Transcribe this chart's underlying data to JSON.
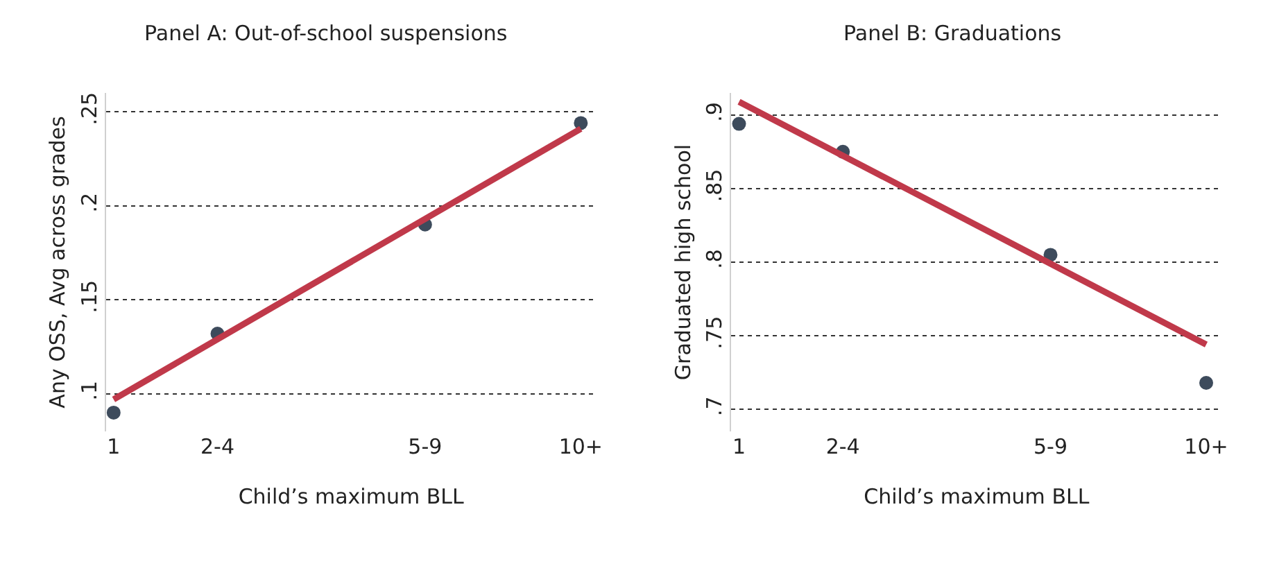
{
  "chart_data": [
    {
      "type": "scatter",
      "title": "Panel A: Out-of-school suspensions",
      "xlabel": "Child’s maximum BLL",
      "ylabel": "Any OSS, Avg across grades",
      "categories": [
        "1",
        null,
        "2-4",
        null,
        null,
        null,
        "5-9",
        null,
        null,
        "10+"
      ],
      "ylim": [
        0.08,
        0.26
      ],
      "yticks": [
        {
          "value": 0.1,
          "label": ".1"
        },
        {
          "value": 0.15,
          "label": ".15"
        },
        {
          "value": 0.2,
          "label": ".2"
        },
        {
          "value": 0.25,
          "label": ".25"
        }
      ],
      "grid": "y",
      "marker": "circle",
      "series": [
        {
          "color": "#3d4b5c",
          "values": [
            0.09,
            null,
            0.132,
            null,
            null,
            null,
            0.19,
            null,
            null,
            0.244
          ]
        },
        {
          "type": "line",
          "color": "#c0394a",
          "line_style": "solid",
          "marker": "none",
          "values": [
            0.097,
            null,
            null,
            null,
            null,
            null,
            null,
            null,
            null,
            0.241
          ]
        }
      ]
    },
    {
      "type": "scatter",
      "title": "Panel B: Graduations",
      "xlabel": "Child’s maximum BLL",
      "ylabel": "Graduated high school",
      "categories": [
        "1",
        null,
        "2-4",
        null,
        null,
        null,
        "5-9",
        null,
        null,
        "10+"
      ],
      "ylim": [
        0.685,
        0.915
      ],
      "yticks": [
        {
          "value": 0.7,
          "label": ".7"
        },
        {
          "value": 0.75,
          "label": ".75"
        },
        {
          "value": 0.8,
          "label": ".8"
        },
        {
          "value": 0.85,
          "label": ".85"
        },
        {
          "value": 0.9,
          "label": ".9"
        }
      ],
      "grid": "y",
      "marker": "circle",
      "series": [
        {
          "color": "#3d4b5c",
          "values": [
            0.894,
            null,
            0.875,
            null,
            null,
            null,
            0.805,
            null,
            null,
            0.718
          ]
        },
        {
          "type": "line",
          "color": "#c0394a",
          "line_style": "solid",
          "marker": "none",
          "values": [
            0.909,
            null,
            null,
            null,
            null,
            null,
            null,
            null,
            null,
            0.744
          ]
        }
      ]
    }
  ]
}
